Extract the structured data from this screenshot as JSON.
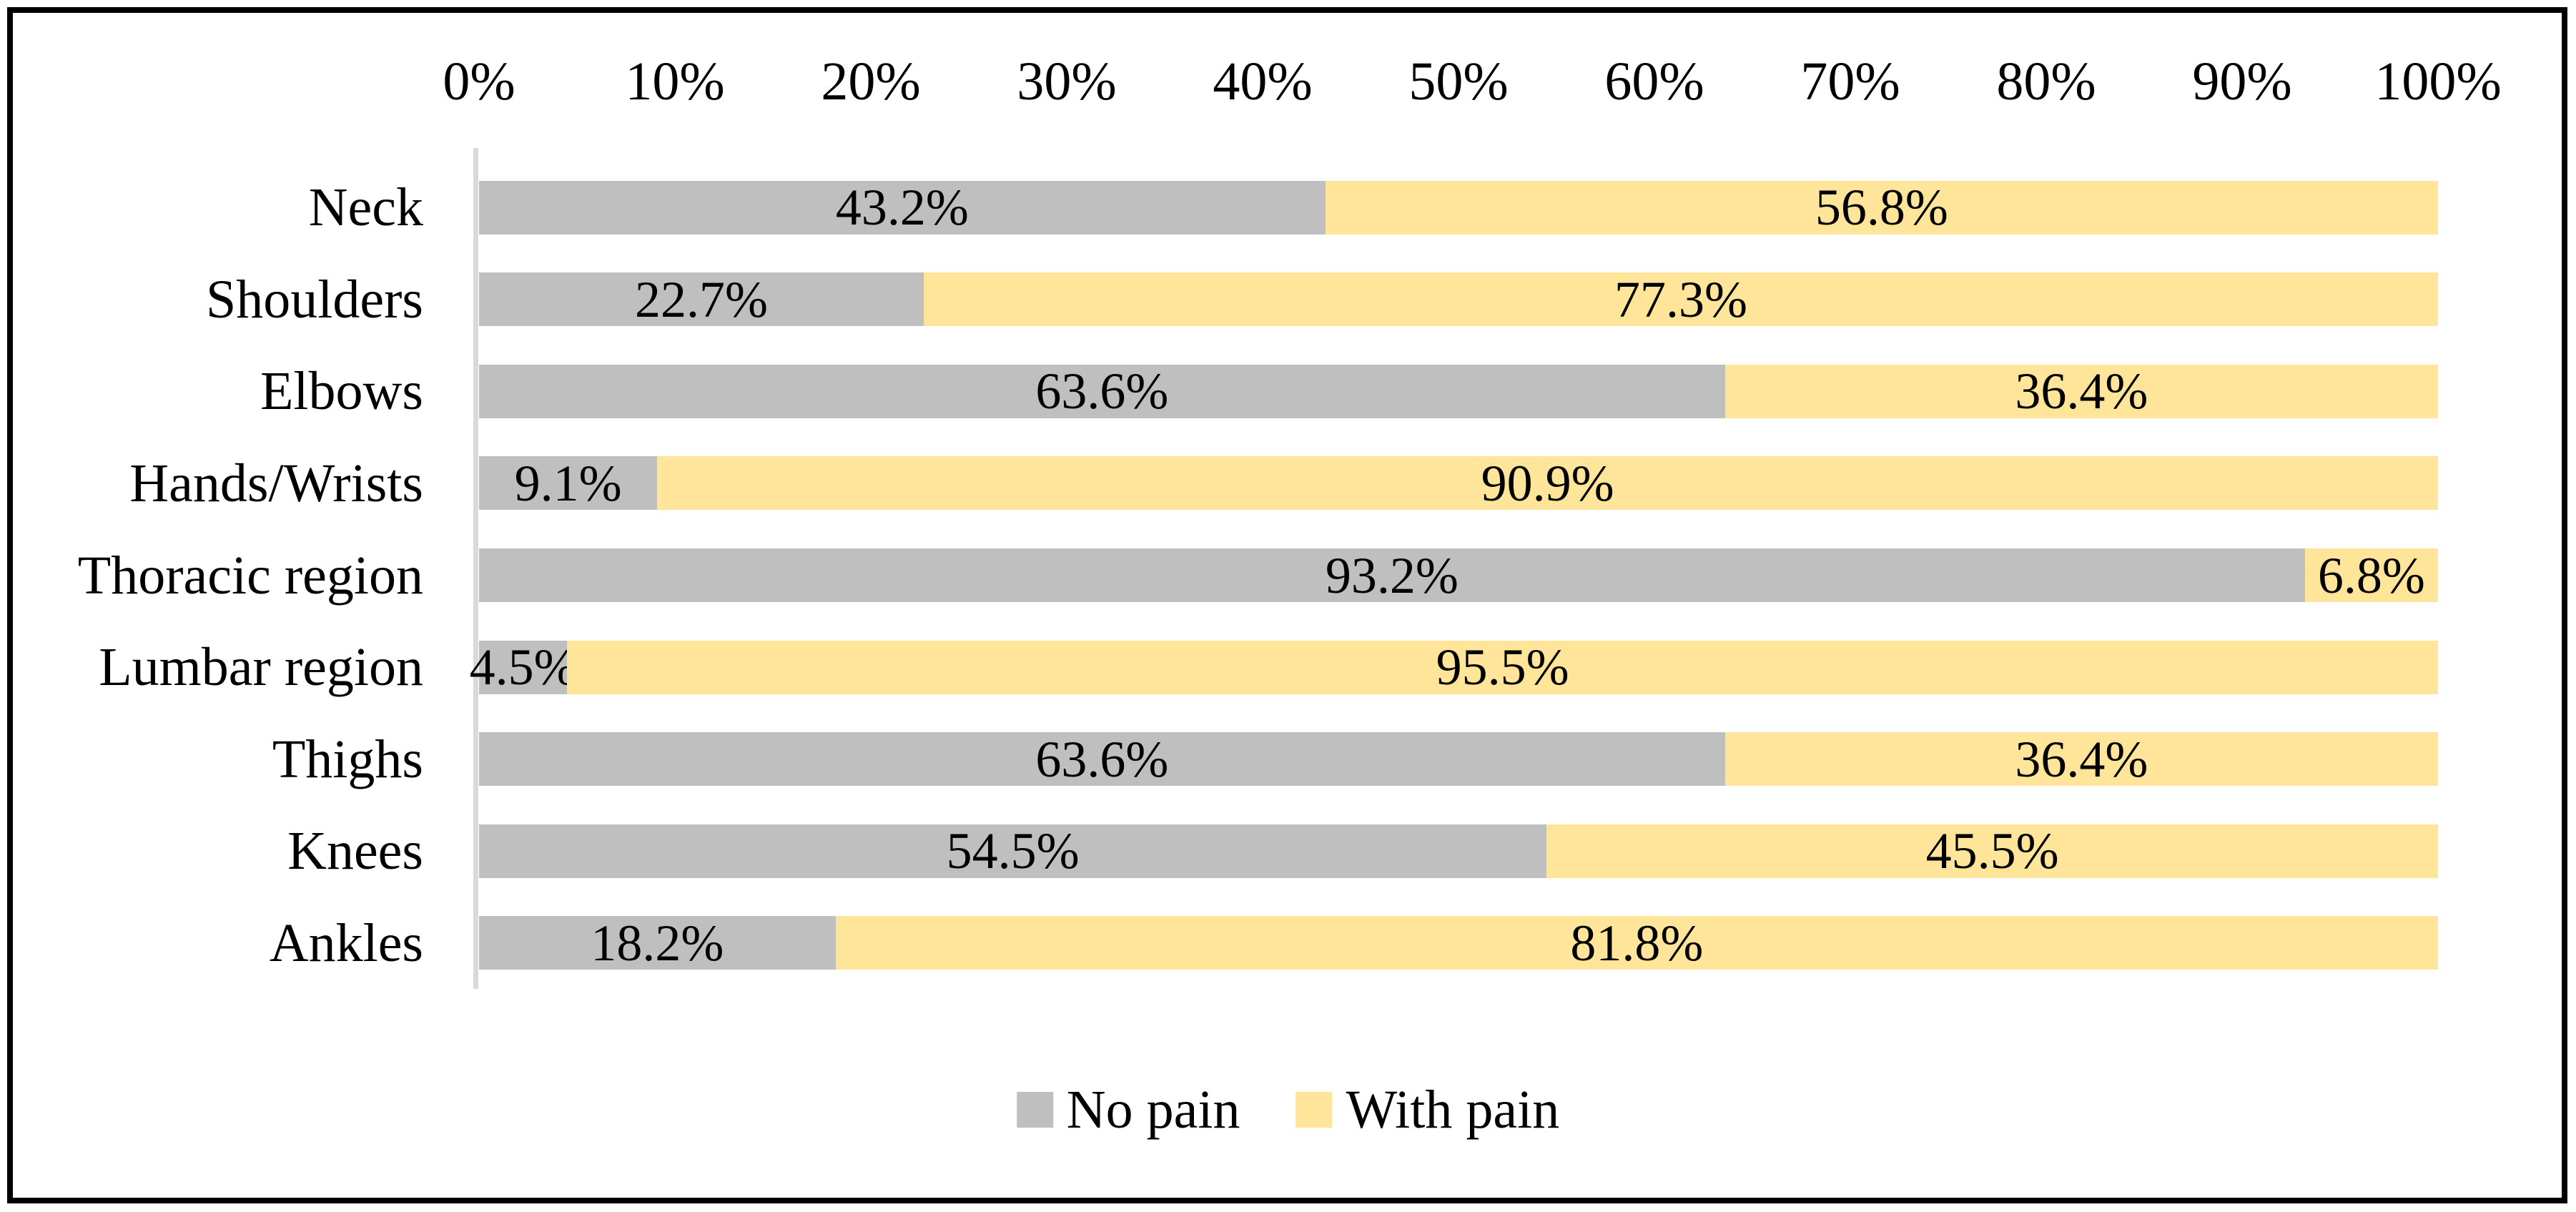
{
  "chart_data": {
    "type": "bar",
    "orientation": "horizontal",
    "stacked": true,
    "title": "",
    "xlabel": "",
    "ylabel": "",
    "xlim": [
      0,
      100
    ],
    "x_ticks": [
      "0%",
      "10%",
      "20%",
      "30%",
      "40%",
      "50%",
      "60%",
      "70%",
      "80%",
      "90%",
      "100%"
    ],
    "axis_position": "top",
    "grid": false,
    "legend_position": "bottom",
    "categories": [
      "Neck",
      "Shoulders",
      "Elbows",
      "Hands/Wrists",
      "Thoracic region",
      "Lumbar region",
      "Thighs",
      "Knees",
      "Ankles"
    ],
    "series": [
      {
        "name": "No pain",
        "color": "#BFBFBF",
        "values": [
          43.2,
          22.7,
          63.6,
          9.1,
          93.2,
          4.5,
          63.6,
          54.5,
          18.2
        ],
        "labels": [
          "43.2%",
          "22.7%",
          "63.6%",
          "9.1%",
          "93.2%",
          "4.5%",
          "63.6%",
          "54.5%",
          "18.2%"
        ]
      },
      {
        "name": "With pain",
        "color": "#FFE599",
        "values": [
          56.8,
          77.3,
          36.4,
          90.9,
          6.8,
          95.5,
          36.4,
          45.5,
          81.8
        ],
        "labels": [
          "56.8%",
          "77.3%",
          "36.4%",
          "90.9%",
          "6.8%",
          "95.5%",
          "36.4%",
          "45.5%",
          "81.8%"
        ]
      }
    ],
    "label_color": "#000000",
    "axis_line_color": "#D9D9D9",
    "border_color": "#000000",
    "background_color": "#FFFFFF"
  }
}
